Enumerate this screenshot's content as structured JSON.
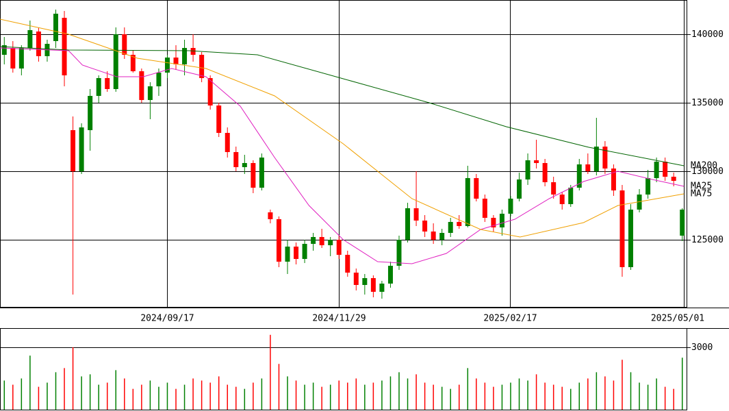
{
  "chart_data": {
    "type": "candlestick",
    "up_color": "#008000",
    "down_color": "#ff0000",
    "xlim": [
      0,
      80
    ],
    "xticks": [
      {
        "value": 19.5,
        "label": "2024/09/17"
      },
      {
        "value": 39.5,
        "label": "2024/11/29"
      },
      {
        "value": 59.4,
        "label": "2025/02/17"
      },
      {
        "value": 79.7,
        "label": "2025/05/01"
      }
    ],
    "ylim": [
      120100,
      142500
    ],
    "yticks": [
      125000,
      130000,
      135000,
      140000
    ],
    "grid": true,
    "open": [
      138500,
      139000,
      137500,
      139000,
      140200,
      138400,
      139500,
      141200,
      133000,
      130000,
      133000,
      135500,
      136800,
      136000,
      140000,
      138500,
      137300,
      135200,
      136200,
      137200,
      138300,
      137800,
      139000,
      138500,
      136800,
      134800,
      132800,
      131400,
      130300,
      130600,
      128800,
      127000,
      126500,
      123400,
      124500,
      123600,
      124700,
      125200,
      124600,
      125000,
      123900,
      122600,
      121700,
      122200,
      121200,
      121800,
      123100,
      125000,
      127300,
      126400,
      125600,
      125000,
      125500,
      126300,
      126000,
      129500,
      128000,
      126600,
      125900,
      126900,
      128000,
      129400,
      130800,
      130600,
      129200,
      128300,
      127600,
      128800,
      130500,
      130000,
      131800,
      130200,
      128600,
      123000,
      127200,
      128300,
      129500,
      130700,
      129600,
      125300
    ],
    "high": [
      139800,
      139500,
      139200,
      141000,
      140500,
      139600,
      141800,
      141700,
      134000,
      133500,
      136000,
      137000,
      137300,
      140500,
      140500,
      138800,
      137500,
      136500,
      137500,
      138500,
      139200,
      139600,
      140000,
      138700,
      137000,
      135000,
      133200,
      131800,
      131200,
      130800,
      131300,
      127200,
      126700,
      125000,
      124800,
      125000,
      125500,
      125800,
      125200,
      125300,
      124200,
      122900,
      122500,
      122400,
      122000,
      123400,
      125300,
      127700,
      130000,
      126800,
      126200,
      125800,
      126600,
      126800,
      130400,
      129800,
      128300,
      126800,
      127200,
      128200,
      129900,
      131300,
      132300,
      130900,
      129600,
      128500,
      129000,
      130900,
      131300,
      133900,
      132200,
      130500,
      129000,
      127600,
      128700,
      130100,
      131000,
      131000,
      129900,
      127300
    ],
    "low": [
      137800,
      137200,
      137000,
      138800,
      138000,
      138000,
      139000,
      136200,
      121000,
      129800,
      131500,
      135000,
      135800,
      135800,
      138200,
      137200,
      135000,
      133800,
      135500,
      136800,
      137400,
      137000,
      138000,
      136500,
      134500,
      132500,
      131000,
      130000,
      129800,
      128400,
      128600,
      126200,
      123000,
      122500,
      123200,
      123300,
      124200,
      124400,
      123800,
      123600,
      122300,
      121300,
      121000,
      120800,
      120700,
      121500,
      122800,
      124800,
      126000,
      125200,
      124700,
      124600,
      125200,
      125800,
      125900,
      127800,
      126300,
      125600,
      125300,
      126700,
      127800,
      129000,
      130200,
      128900,
      128000,
      127200,
      127400,
      128600,
      129800,
      129700,
      129800,
      128200,
      122300,
      122800,
      127000,
      128000,
      129200,
      129300,
      128900,
      124900
    ],
    "close": [
      139200,
      137500,
      139000,
      140300,
      138400,
      139300,
      141500,
      137000,
      130000,
      133200,
      135500,
      136800,
      136000,
      140000,
      138500,
      137300,
      135200,
      136200,
      137200,
      138300,
      137800,
      139000,
      138500,
      136800,
      134800,
      132800,
      131400,
      130300,
      130600,
      128800,
      131000,
      126500,
      123400,
      124500,
      123600,
      124700,
      125200,
      124600,
      125000,
      123900,
      122600,
      121700,
      122200,
      121200,
      121800,
      123100,
      125000,
      127300,
      126400,
      125600,
      125000,
      125500,
      126300,
      126000,
      129500,
      128000,
      126600,
      125900,
      126900,
      128000,
      129400,
      130800,
      130600,
      129200,
      128300,
      127600,
      128800,
      130500,
      130000,
      131800,
      130200,
      128600,
      123000,
      127200,
      128300,
      129500,
      130700,
      129600,
      129300,
      127200
    ],
    "series": [
      {
        "name": "MA200",
        "color": "#006400",
        "x": [
          0,
          8,
          22,
          30,
          40,
          50,
          59,
          68.6,
          79.7
        ],
        "values": [
          139100,
          138850,
          138800,
          138500,
          136750,
          135000,
          133250,
          131750,
          130400
        ]
      },
      {
        "name": "MA25",
        "color": "#e020c0",
        "x": [
          0,
          8,
          9.6,
          13.6,
          16.7,
          20,
          24,
          28,
          32,
          36,
          40,
          44,
          48,
          52,
          56,
          60,
          64,
          68,
          72,
          76,
          79.7
        ],
        "values": [
          139000,
          138800,
          137750,
          136900,
          136900,
          137500,
          136900,
          134750,
          131000,
          127500,
          125000,
          123400,
          123250,
          124000,
          125750,
          126500,
          128000,
          129250,
          130000,
          129400,
          128900
        ]
      },
      {
        "name": "MA75",
        "color": "#f0a000",
        "x": [
          0,
          8,
          16,
          24,
          32,
          40,
          48,
          56,
          60.6,
          68,
          72,
          79.7
        ],
        "values": [
          141100,
          140000,
          138250,
          137500,
          135500,
          132000,
          128000,
          125750,
          125200,
          126250,
          127500,
          128350
        ]
      }
    ],
    "volume": {
      "values": [
        1400,
        1200,
        1500,
        2600,
        1100,
        1300,
        1800,
        2000,
        3000,
        1600,
        1700,
        1200,
        1300,
        1900,
        1500,
        1000,
        1200,
        1400,
        1100,
        1300,
        1000,
        1200,
        1500,
        1400,
        1300,
        1600,
        1200,
        1100,
        1000,
        1300,
        1500,
        3600,
        2200,
        1600,
        1400,
        1200,
        1300,
        1100,
        1200,
        1400,
        1300,
        1500,
        1200,
        1300,
        1400,
        1600,
        1800,
        1500,
        1700,
        1300,
        1200,
        1100,
        1000,
        1200,
        2000,
        1500,
        1300,
        1100,
        1200,
        1300,
        1500,
        1400,
        1700,
        1300,
        1200,
        1100,
        1000,
        1300,
        1500,
        1800,
        1600,
        1400,
        2400,
        1800,
        1300,
        1200,
        1500,
        1100,
        1000,
        2500
      ],
      "ylim": [
        0,
        3890
      ],
      "yticks": [
        3000
      ]
    }
  }
}
